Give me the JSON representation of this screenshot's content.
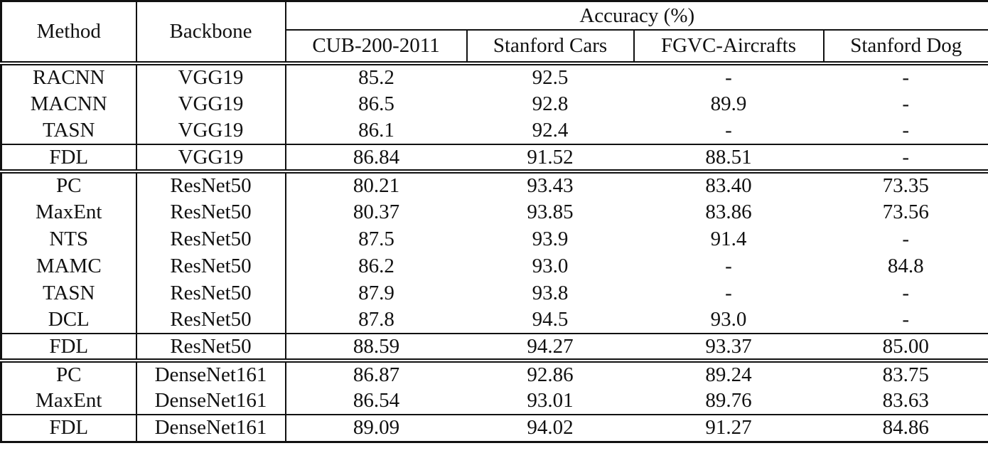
{
  "table": {
    "headers": {
      "method": "Method",
      "backbone": "Backbone",
      "accuracy_group": "Accuracy (%)",
      "datasets": [
        "CUB-200-2011",
        "Stanford Cars",
        "FGVC-Aircrafts",
        "Stanford Dog"
      ]
    },
    "groups": [
      {
        "backbone_family": "VGG19",
        "rows": [
          {
            "method": "RACNN",
            "backbone": "VGG19",
            "values": [
              "85.2",
              "92.5",
              "-",
              "-"
            ],
            "bold": [
              false,
              false,
              false,
              false
            ]
          },
          {
            "method": "MACNN",
            "backbone": "VGG19",
            "values": [
              "86.5",
              "92.8",
              "89.9",
              "-"
            ],
            "bold": [
              false,
              true,
              true,
              false
            ]
          },
          {
            "method": "TASN",
            "backbone": "VGG19",
            "values": [
              "86.1",
              "92.4",
              "-",
              "-"
            ],
            "bold": [
              false,
              false,
              false,
              false
            ]
          },
          {
            "method": "FDL",
            "backbone": "VGG19",
            "values": [
              "86.84",
              "91.52",
              "88.51",
              "-"
            ],
            "bold": [
              true,
              false,
              false,
              false
            ]
          }
        ]
      },
      {
        "backbone_family": "ResNet50",
        "rows": [
          {
            "method": "PC",
            "backbone": "ResNet50",
            "values": [
              "80.21",
              "93.43",
              "83.40",
              "73.35"
            ],
            "bold": [
              false,
              false,
              false,
              false
            ]
          },
          {
            "method": "MaxEnt",
            "backbone": "ResNet50",
            "values": [
              "80.37",
              "93.85",
              "83.86",
              "73.56"
            ],
            "bold": [
              false,
              false,
              false,
              false
            ]
          },
          {
            "method": "NTS",
            "backbone": "ResNet50",
            "values": [
              "87.5",
              "93.9",
              "91.4",
              "-"
            ],
            "bold": [
              false,
              false,
              false,
              false
            ]
          },
          {
            "method": "MAMC",
            "backbone": "ResNet50",
            "values": [
              "86.2",
              "93.0",
              "-",
              "84.8"
            ],
            "bold": [
              false,
              false,
              false,
              false
            ]
          },
          {
            "method": "TASN",
            "backbone": "ResNet50",
            "values": [
              "87.9",
              "93.8",
              "-",
              "-"
            ],
            "bold": [
              false,
              false,
              false,
              false
            ]
          },
          {
            "method": "DCL",
            "backbone": "ResNet50",
            "values": [
              "87.8",
              "94.5",
              "93.0",
              "-"
            ],
            "bold": [
              false,
              true,
              false,
              false
            ]
          },
          {
            "method": "FDL",
            "backbone": "ResNet50",
            "values": [
              "88.59",
              "94.27",
              "93.37",
              "85.00"
            ],
            "bold": [
              true,
              false,
              true,
              true
            ]
          }
        ]
      },
      {
        "backbone_family": "DenseNet161",
        "rows": [
          {
            "method": "PC",
            "backbone": "DenseNet161",
            "values": [
              "86.87",
              "92.86",
              "89.24",
              "83.75"
            ],
            "bold": [
              false,
              false,
              false,
              false
            ]
          },
          {
            "method": "MaxEnt",
            "backbone": "DenseNet161",
            "values": [
              "86.54",
              "93.01",
              "89.76",
              "83.63"
            ],
            "bold": [
              false,
              false,
              false,
              false
            ]
          },
          {
            "method": "FDL",
            "backbone": "DenseNet161",
            "values": [
              "89.09",
              "94.02",
              "91.27",
              "84.86"
            ],
            "bold": [
              true,
              true,
              true,
              true
            ]
          }
        ]
      }
    ]
  }
}
